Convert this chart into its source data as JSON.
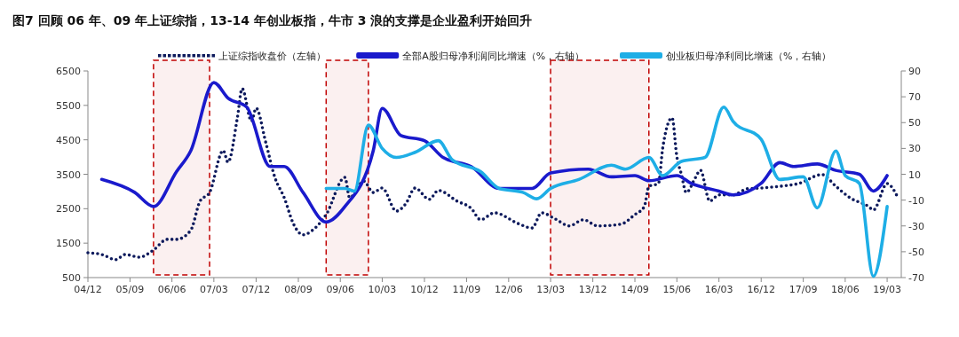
{
  "chart_data": {
    "type": "line",
    "title": "图7  回顾 06 年、09 年上证综指，13-14 年创业板指，牛市 3 浪的支撑是企业盈利开始回升",
    "xlim": [
      "2004-12",
      "2019-06"
    ],
    "xticks": [
      {
        "value": "2004-12",
        "label": "04/12"
      },
      {
        "value": "2005-09",
        "label": "05/09"
      },
      {
        "value": "2006-06",
        "label": "06/06"
      },
      {
        "value": "2007-03",
        "label": "07/03"
      },
      {
        "value": "2007-12",
        "label": "07/12"
      },
      {
        "value": "2008-09",
        "label": "08/09"
      },
      {
        "value": "2009-06",
        "label": "09/06"
      },
      {
        "value": "2010-03",
        "label": "10/03"
      },
      {
        "value": "2010-12",
        "label": "10/12"
      },
      {
        "value": "2011-09",
        "label": "11/09"
      },
      {
        "value": "2012-06",
        "label": "12/06"
      },
      {
        "value": "2013-03",
        "label": "13/03"
      },
      {
        "value": "2013-12",
        "label": "13/12"
      },
      {
        "value": "2014-09",
        "label": "14/09"
      },
      {
        "value": "2015-06",
        "label": "15/06"
      },
      {
        "value": "2016-03",
        "label": "16/03"
      },
      {
        "value": "2016-12",
        "label": "16/12"
      },
      {
        "value": "2017-09",
        "label": "17/09"
      },
      {
        "value": "2018-06",
        "label": "18/06"
      },
      {
        "value": "2019-03",
        "label": "19/03"
      }
    ],
    "ylim": [
      500,
      6500
    ],
    "yticks": [
      500,
      1500,
      2500,
      3500,
      4500,
      5500,
      6500
    ],
    "y2lim": [
      -70,
      90
    ],
    "y2ticks": [
      -70,
      -50,
      -30,
      -10,
      10,
      30,
      50,
      70,
      90
    ],
    "grid": false,
    "legend": "top",
    "bands": [
      {
        "axis": "x",
        "from": "2006-02",
        "to": "2007-02",
        "color": "#c00000"
      },
      {
        "axis": "x",
        "from": "2009-03",
        "to": "2009-12",
        "color": "#c00000"
      },
      {
        "axis": "x",
        "from": "2013-03",
        "to": "2014-12",
        "color": "#c00000"
      }
    ],
    "series": [
      {
        "name": "上证综指收盘价（左轴）",
        "color": "#0d1a5c",
        "line_style": "dotted",
        "x": [
          "2004-12",
          "2005-03",
          "2005-06",
          "2005-08",
          "2005-11",
          "2006-02",
          "2006-05",
          "2006-07",
          "2006-10",
          "2006-12",
          "2007-02",
          "2007-05",
          "2007-06",
          "2007-08",
          "2007-09",
          "2007-11",
          "2007-12",
          "2008-02",
          "2008-04",
          "2008-06",
          "2008-08",
          "2008-10",
          "2008-12",
          "2009-03",
          "2009-07",
          "2009-08",
          "2009-11",
          "2010-01",
          "2010-03",
          "2010-06",
          "2010-08",
          "2010-10",
          "2011-01",
          "2011-03",
          "2011-07",
          "2011-10",
          "2011-12",
          "2012-03",
          "2012-08",
          "2012-11",
          "2013-01",
          "2013-04",
          "2013-07",
          "2013-10",
          "2014-01",
          "2014-06",
          "2014-09",
          "2014-11",
          "2014-12",
          "2015-02",
          "2015-03",
          "2015-05",
          "2015-06",
          "2015-07",
          "2015-08",
          "2015-10",
          "2015-11",
          "2016-01",
          "2016-03",
          "2016-06",
          "2016-09",
          "2016-12",
          "2017-04",
          "2017-08",
          "2018-01",
          "2018-04",
          "2018-07",
          "2018-11",
          "2018-12",
          "2019-03",
          "2019-05"
        ],
        "values": [
          1220,
          1170,
          1020,
          1170,
          1090,
          1300,
          1610,
          1610,
          1870,
          2720,
          2970,
          4190,
          3850,
          5140,
          5990,
          5040,
          5420,
          4440,
          3410,
          2820,
          2050,
          1740,
          1870,
          2330,
          3410,
          2820,
          3300,
          2970,
          3100,
          2430,
          2640,
          3100,
          2770,
          3030,
          2720,
          2510,
          2180,
          2380,
          2070,
          1940,
          2380,
          2200,
          2000,
          2180,
          2000,
          2050,
          2330,
          2560,
          3150,
          3230,
          4260,
          5140,
          4010,
          3490,
          2970,
          3410,
          3620,
          2720,
          2900,
          2900,
          3080,
          3100,
          3150,
          3230,
          3490,
          3150,
          2820,
          2560,
          2460,
          3230,
          2900
        ]
      },
      {
        "name": "全部A股归母净利润同比增速（%，右轴）",
        "color": "#1a1acc",
        "axis": "y2",
        "line_style": "solid",
        "x": [
          "2005-03",
          "2005-10",
          "2006-02",
          "2006-07",
          "2006-10",
          "2007-03",
          "2007-06",
          "2007-10",
          "2008-03",
          "2008-06",
          "2008-10",
          "2009-03",
          "2009-07",
          "2010-01",
          "2010-03",
          "2010-07",
          "2010-12",
          "2011-04",
          "2011-10",
          "2012-04",
          "2012-11",
          "2013-03",
          "2013-11",
          "2014-04",
          "2014-09",
          "2014-12",
          "2015-06",
          "2015-09",
          "2016-03",
          "2016-06",
          "2016-12",
          "2017-04",
          "2017-07",
          "2017-12",
          "2018-04",
          "2018-09",
          "2018-12",
          "2019-03"
        ],
        "values": [
          6,
          -4,
          -15,
          12,
          28,
          81,
          69,
          62,
          16,
          16,
          -4,
          -27,
          -15,
          28,
          61,
          40,
          36,
          23,
          16,
          -1,
          -1,
          11,
          14,
          8,
          9,
          5,
          9,
          3,
          -3,
          -6,
          3,
          19,
          16,
          18,
          13,
          10,
          -3,
          9
        ]
      },
      {
        "name": "创业板归母净利同比增速（%，右轴）",
        "color": "#1eaee6",
        "axis": "y2",
        "line_style": "solid",
        "x": [
          "2009-03",
          "2009-07",
          "2009-09",
          "2009-12",
          "2010-03",
          "2010-06",
          "2010-10",
          "2011-03",
          "2011-06",
          "2011-12",
          "2012-04",
          "2012-09",
          "2012-12",
          "2013-03",
          "2013-09",
          "2014-04",
          "2014-07",
          "2014-12",
          "2015-03",
          "2015-07",
          "2015-12",
          "2016-04",
          "2016-06",
          "2016-12",
          "2017-04",
          "2017-09",
          "2017-12",
          "2018-04",
          "2018-06",
          "2018-09",
          "2018-12",
          "2019-03"
        ],
        "values": [
          -1,
          -1,
          -3,
          48,
          30,
          23,
          27,
          36,
          21,
          12,
          -1,
          -4,
          -9,
          -1,
          6,
          17,
          14,
          23,
          9,
          20,
          23,
          62,
          51,
          37,
          6,
          8,
          -16,
          28,
          9,
          3,
          -69,
          -15
        ]
      }
    ]
  }
}
